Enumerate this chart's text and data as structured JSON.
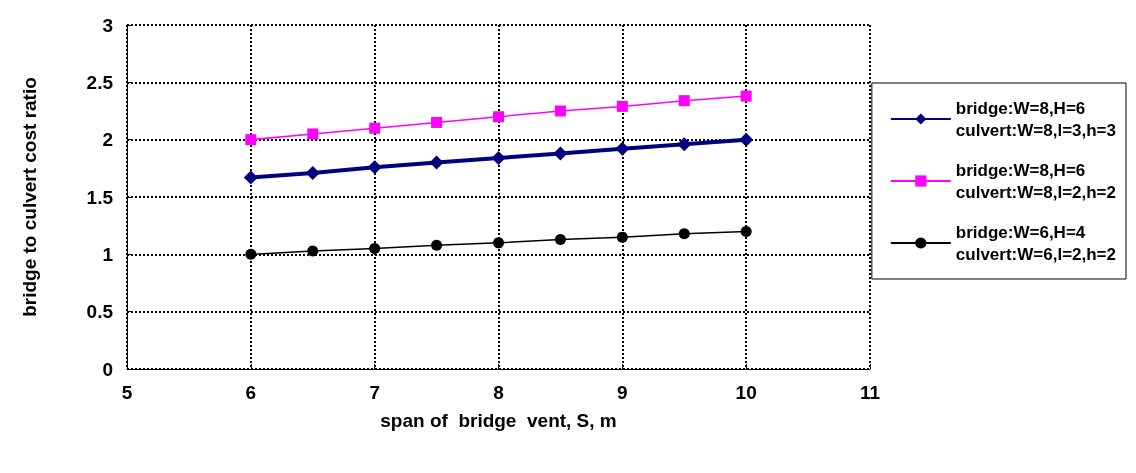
{
  "chart_data": {
    "type": "line",
    "xlabel": "span of  bridge  vent, S, m",
    "ylabel": "bridge to culvert cost ratio",
    "x": [
      6,
      6.5,
      7,
      7.5,
      8,
      8.5,
      9,
      9.5,
      10
    ],
    "series": [
      {
        "name": "bridge:W=8,H=6\nculvert:W=8,l=3,h=3",
        "color": "#000080",
        "marker": "diamond",
        "values": [
          1.67,
          1.71,
          1.76,
          1.8,
          1.84,
          1.88,
          1.92,
          1.96,
          2.0
        ]
      },
      {
        "name": "bridge:W=8,H=6\nculvert:W=8,l=2,h=2",
        "color": "#ff00ff",
        "marker": "square",
        "values": [
          2.0,
          2.05,
          2.1,
          2.15,
          2.2,
          2.25,
          2.29,
          2.34,
          2.38
        ]
      },
      {
        "name": "bridge:W=6,H=4\nculvert:W=6,l=2,h=2",
        "color": "#000000",
        "marker": "circle",
        "values": [
          1.0,
          1.03,
          1.05,
          1.08,
          1.1,
          1.13,
          1.15,
          1.18,
          1.2
        ]
      }
    ],
    "xlim": [
      5,
      11
    ],
    "xticks": [
      5,
      6,
      7,
      8,
      9,
      10,
      11
    ],
    "ylim": [
      0,
      3
    ],
    "yticks": [
      0,
      0.5,
      1,
      1.5,
      2,
      2.5,
      3
    ],
    "grid": true,
    "legend": "right",
    "line_style": "solid"
  }
}
